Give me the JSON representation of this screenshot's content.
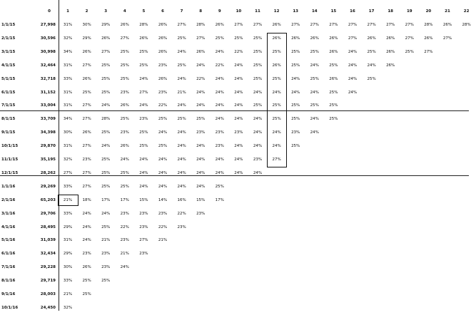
{
  "header": {
    "periods": [
      "0",
      "1",
      "2",
      "3",
      "4",
      "5",
      "6",
      "7",
      "8",
      "9",
      "10",
      "11",
      "12",
      "13",
      "14",
      "15",
      "16",
      "17",
      "18",
      "19",
      "20",
      "21",
      "22"
    ]
  },
  "rows": [
    {
      "date": "1/1/15",
      "total": "27,998",
      "values": [
        "31%",
        "30%",
        "29%",
        "26%",
        "28%",
        "26%",
        "27%",
        "28%",
        "26%",
        "27%",
        "27%",
        "26%",
        "27%",
        "27%",
        "27%",
        "27%",
        "27%",
        "27%",
        "27%",
        "28%",
        "26%",
        "28%"
      ]
    },
    {
      "date": "2/1/15",
      "total": "30,596",
      "values": [
        "32%",
        "29%",
        "26%",
        "27%",
        "26%",
        "26%",
        "25%",
        "27%",
        "25%",
        "25%",
        "25%",
        "26%",
        "26%",
        "26%",
        "26%",
        "27%",
        "26%",
        "26%",
        "27%",
        "26%",
        "27%"
      ]
    },
    {
      "date": "3/1/15",
      "total": "30,998",
      "values": [
        "34%",
        "26%",
        "27%",
        "25%",
        "25%",
        "26%",
        "24%",
        "26%",
        "24%",
        "22%",
        "25%",
        "25%",
        "25%",
        "25%",
        "26%",
        "24%",
        "25%",
        "26%",
        "25%",
        "27%"
      ]
    },
    {
      "date": "4/1/15",
      "total": "32,464",
      "values": [
        "31%",
        "27%",
        "25%",
        "25%",
        "25%",
        "23%",
        "25%",
        "24%",
        "22%",
        "24%",
        "25%",
        "26%",
        "25%",
        "24%",
        "25%",
        "24%",
        "24%",
        "26%"
      ]
    },
    {
      "date": "5/1/15",
      "total": "32,718",
      "values": [
        "33%",
        "26%",
        "25%",
        "25%",
        "24%",
        "26%",
        "24%",
        "22%",
        "24%",
        "24%",
        "25%",
        "25%",
        "24%",
        "25%",
        "26%",
        "24%",
        "25%"
      ]
    },
    {
      "date": "6/1/15",
      "total": "31,152",
      "values": [
        "31%",
        "25%",
        "25%",
        "23%",
        "27%",
        "23%",
        "21%",
        "24%",
        "24%",
        "24%",
        "24%",
        "24%",
        "24%",
        "24%",
        "25%",
        "24%"
      ]
    },
    {
      "date": "7/1/15",
      "total": "33,004",
      "values": [
        "31%",
        "27%",
        "24%",
        "26%",
        "24%",
        "22%",
        "24%",
        "24%",
        "24%",
        "24%",
        "25%",
        "25%",
        "25%",
        "25%",
        "25%"
      ]
    },
    {
      "date": "8/1/15",
      "total": "33,709",
      "values": [
        "34%",
        "27%",
        "28%",
        "25%",
        "23%",
        "25%",
        "25%",
        "25%",
        "24%",
        "24%",
        "24%",
        "25%",
        "25%",
        "24%",
        "25%"
      ]
    },
    {
      "date": "9/1/15",
      "total": "34,398",
      "values": [
        "30%",
        "26%",
        "25%",
        "23%",
        "25%",
        "24%",
        "24%",
        "23%",
        "23%",
        "23%",
        "24%",
        "24%",
        "23%",
        "24%"
      ]
    },
    {
      "date": "10/1/15",
      "total": "29,870",
      "values": [
        "31%",
        "27%",
        "24%",
        "26%",
        "25%",
        "25%",
        "24%",
        "24%",
        "23%",
        "24%",
        "24%",
        "24%",
        "25%"
      ]
    },
    {
      "date": "11/1/15",
      "total": "35,195",
      "values": [
        "32%",
        "23%",
        "25%",
        "24%",
        "24%",
        "24%",
        "24%",
        "24%",
        "24%",
        "24%",
        "23%",
        "27%"
      ]
    },
    {
      "date": "12/1/15",
      "total": "28,262",
      "values": [
        "27%",
        "27%",
        "25%",
        "25%",
        "24%",
        "24%",
        "24%",
        "24%",
        "24%",
        "24%",
        "24%"
      ]
    },
    {
      "date": "1/1/16",
      "total": "29,269",
      "values": [
        "33%",
        "27%",
        "25%",
        "25%",
        "24%",
        "24%",
        "24%",
        "24%",
        "25%"
      ]
    },
    {
      "date": "2/1/16",
      "total": "65,203",
      "values": [
        "21%",
        "18%",
        "17%",
        "17%",
        "15%",
        "14%",
        "16%",
        "15%",
        "17%"
      ]
    },
    {
      "date": "3/1/16",
      "total": "29,706",
      "values": [
        "33%",
        "24%",
        "24%",
        "23%",
        "23%",
        "23%",
        "22%",
        "23%"
      ]
    },
    {
      "date": "4/1/16",
      "total": "28,495",
      "values": [
        "29%",
        "24%",
        "25%",
        "22%",
        "23%",
        "22%",
        "23%"
      ]
    },
    {
      "date": "5/1/16",
      "total": "31,039",
      "values": [
        "31%",
        "24%",
        "21%",
        "23%",
        "27%",
        "21%"
      ]
    },
    {
      "date": "6/1/16",
      "total": "32,434",
      "values": [
        "29%",
        "23%",
        "23%",
        "21%",
        "23%"
      ]
    },
    {
      "date": "7/1/16",
      "total": "29,228",
      "values": [
        "30%",
        "26%",
        "23%",
        "24%"
      ]
    },
    {
      "date": "8/1/16",
      "total": "29,719",
      "values": [
        "33%",
        "25%",
        "25%"
      ]
    },
    {
      "date": "9/1/16",
      "total": "28,003",
      "values": [
        "21%",
        "25%"
      ]
    },
    {
      "date": "10/1/16",
      "total": "24,450",
      "values": [
        "32%"
      ]
    }
  ]
}
